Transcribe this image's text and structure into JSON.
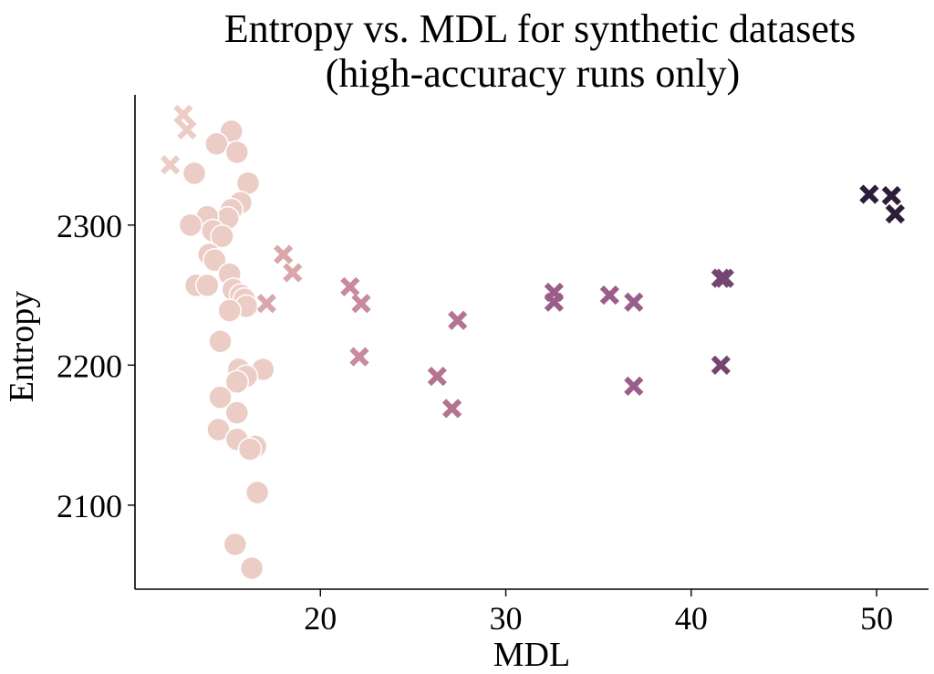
{
  "chart_data": {
    "type": "scatter",
    "title": [
      "Entropy vs. MDL for synthetic datasets",
      "(high-accuracy runs only)"
    ],
    "xlabel": "MDL",
    "ylabel": "Entropy",
    "xlim": [
      10.0,
      52.8
    ],
    "ylim": [
      2040,
      2393
    ],
    "x_ticks": [
      20,
      30,
      40,
      50
    ],
    "y_ticks": [
      2100,
      2200,
      2300
    ],
    "grid": false,
    "legend": "none",
    "series": [
      {
        "marker": "circle",
        "color": "#ebcdc6",
        "points": [
          [
            15.2,
            2367
          ],
          [
            14.4,
            2358
          ],
          [
            15.5,
            2352
          ],
          [
            13.2,
            2337
          ],
          [
            16.1,
            2330
          ],
          [
            15.7,
            2316
          ],
          [
            15.2,
            2311
          ],
          [
            15.0,
            2305
          ],
          [
            13.9,
            2306
          ],
          [
            13.0,
            2300
          ],
          [
            14.2,
            2296
          ],
          [
            14.7,
            2292
          ],
          [
            14.0,
            2279
          ],
          [
            14.3,
            2275
          ],
          [
            15.1,
            2265
          ],
          [
            13.3,
            2257
          ],
          [
            13.9,
            2257
          ],
          [
            15.3,
            2254
          ],
          [
            15.7,
            2250
          ],
          [
            15.9,
            2247
          ],
          [
            16.0,
            2242
          ],
          [
            15.1,
            2239
          ],
          [
            14.6,
            2217
          ],
          [
            16.9,
            2197
          ],
          [
            15.6,
            2197
          ],
          [
            16.0,
            2192
          ],
          [
            15.5,
            2188
          ],
          [
            14.6,
            2177
          ],
          [
            15.5,
            2166
          ],
          [
            14.5,
            2154
          ],
          [
            15.5,
            2147
          ],
          [
            16.5,
            2142
          ],
          [
            16.2,
            2140
          ],
          [
            16.6,
            2109
          ],
          [
            15.4,
            2072
          ],
          [
            16.3,
            2055
          ]
        ]
      },
      {
        "marker": "x",
        "color": "#ebcdc6",
        "points": [
          [
            12.6,
            2379
          ],
          [
            12.8,
            2368
          ],
          [
            11.9,
            2343
          ]
        ]
      },
      {
        "marker": "x",
        "color": "#d9a7aa",
        "points": [
          [
            17.1,
            2244
          ],
          [
            18.0,
            2279
          ],
          [
            18.5,
            2266
          ]
        ]
      },
      {
        "marker": "x",
        "color": "#c88b9e",
        "points": [
          [
            21.6,
            2256
          ],
          [
            22.2,
            2244
          ],
          [
            22.1,
            2206
          ]
        ]
      },
      {
        "marker": "x",
        "color": "#b4738f",
        "points": [
          [
            27.4,
            2232
          ],
          [
            26.3,
            2192
          ],
          [
            27.1,
            2169
          ]
        ]
      },
      {
        "marker": "x",
        "color": "#9a5e8a",
        "points": [
          [
            32.6,
            2252
          ],
          [
            32.6,
            2245
          ],
          [
            35.6,
            2250
          ],
          [
            36.9,
            2245
          ],
          [
            36.9,
            2185
          ]
        ]
      },
      {
        "marker": "x",
        "color": "#74466f",
        "points": [
          [
            41.8,
            2262
          ],
          [
            41.6,
            2262
          ],
          [
            41.6,
            2200
          ]
        ]
      },
      {
        "marker": "x",
        "color": "#2e1d38",
        "points": [
          [
            49.6,
            2322
          ],
          [
            50.8,
            2321
          ],
          [
            51.0,
            2308
          ]
        ]
      }
    ]
  }
}
